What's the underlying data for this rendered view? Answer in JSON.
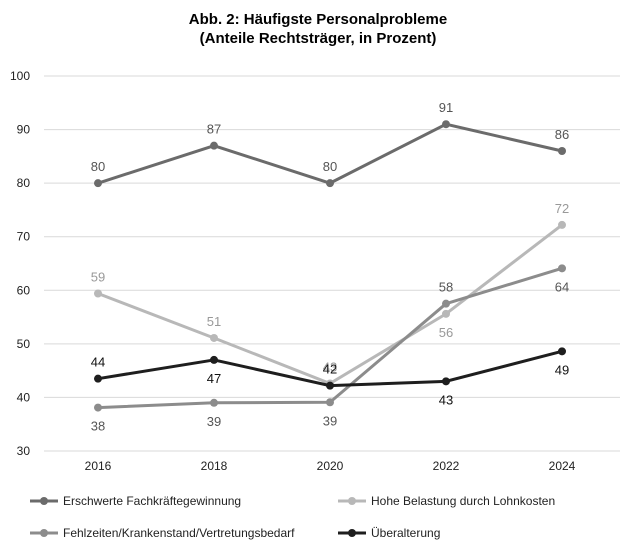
{
  "chart_data": {
    "type": "line",
    "title": "Abb. 2: Häufigste Personalprobleme",
    "subtitle": "(Anteile Rechtsträger, in Prozent)",
    "xlabel": "",
    "ylabel": "",
    "x": [
      "2016",
      "2018",
      "2020",
      "2022",
      "2024"
    ],
    "ylim": [
      30,
      100
    ],
    "yticks": [
      30,
      40,
      50,
      60,
      70,
      80,
      90,
      100
    ],
    "grid": true,
    "legend_position": "bottom",
    "series": [
      {
        "name": "Erschwerte Fachkräftegewinnung",
        "color": "#6b6b6b",
        "values": [
          80,
          87,
          80,
          91,
          86
        ],
        "labels": [
          "80",
          "87",
          "80",
          "91",
          "86"
        ],
        "label_pos": [
          "above",
          "above",
          "above",
          "above",
          "above"
        ]
      },
      {
        "name": "Hohe Belastung durch Lohnkosten",
        "color": "#b8b8b8",
        "values": [
          59.4,
          51.1,
          42.6,
          55.6,
          72.2
        ],
        "labels": [
          "59",
          "51",
          "43",
          "56",
          "72"
        ],
        "label_pos": [
          "above",
          "above",
          "above",
          "below",
          "above"
        ]
      },
      {
        "name": "Fehlzeiten/Krankenstand/Vertretungsbedarf",
        "color": "#8c8c8c",
        "values": [
          38.1,
          39.0,
          39.1,
          57.5,
          64.1
        ],
        "labels": [
          "38",
          "39",
          "39",
          "58",
          "64"
        ],
        "label_pos": [
          "below",
          "below",
          "below",
          "above",
          "below"
        ]
      },
      {
        "name": "Überalterung",
        "color": "#1e1e1e",
        "values": [
          43.5,
          47.0,
          42.2,
          43.0,
          48.6
        ],
        "labels": [
          "44",
          "47",
          "42",
          "43",
          "49"
        ],
        "label_pos": [
          "above",
          "below",
          "above",
          "below",
          "below"
        ]
      }
    ]
  }
}
